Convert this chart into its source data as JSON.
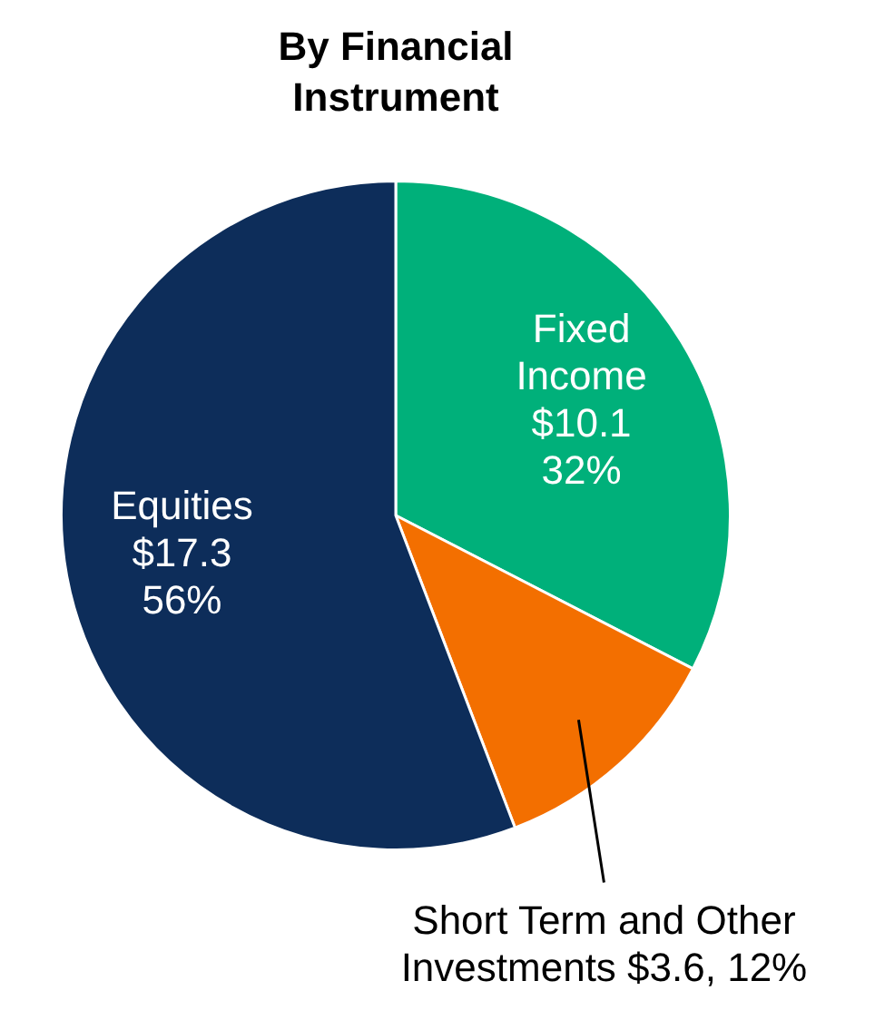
{
  "chart_data": {
    "type": "pie",
    "title": "By Financial Instrument",
    "categories": [
      "Fixed Income",
      "Short Term and Other Investments",
      "Equities"
    ],
    "values": [
      10.1,
      3.6,
      17.3
    ],
    "colors": [
      "#00b07a",
      "#f36f00",
      "#0d2d5a"
    ],
    "value_labels": [
      "$10.1\n32%",
      "$3.6, 12%",
      "$17.3\n56%"
    ],
    "legend": false
  }
}
